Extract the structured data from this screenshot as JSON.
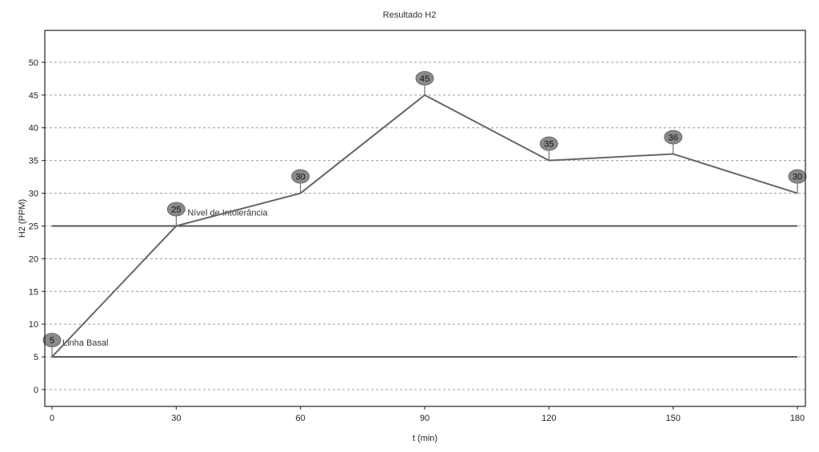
{
  "chart_data": {
    "type": "line",
    "title": "Resultado H2",
    "xlabel": "t (min)",
    "ylabel": "H2 (PPM)",
    "xlim": [
      0,
      180
    ],
    "ylim": [
      0,
      50
    ],
    "xticks": [
      0,
      30,
      60,
      90,
      120,
      150,
      180
    ],
    "yticks": [
      0,
      5,
      10,
      15,
      20,
      25,
      30,
      35,
      40,
      45,
      50
    ],
    "grid": "horizontal-dashed",
    "series": [
      {
        "x": [
          0,
          30,
          60,
          90,
          120,
          150,
          180
        ],
        "values": [
          5,
          25,
          30,
          45,
          35,
          36,
          30
        ],
        "data_labels": [
          "5",
          "25",
          "30",
          "45",
          "35",
          "36",
          "30"
        ],
        "color": "#666666"
      }
    ],
    "reference_lines": [
      {
        "label": "Nível de Intolerância",
        "value": 25,
        "color": "#555555"
      },
      {
        "label": "Linha Basal",
        "value": 5,
        "color": "#555555"
      }
    ]
  }
}
